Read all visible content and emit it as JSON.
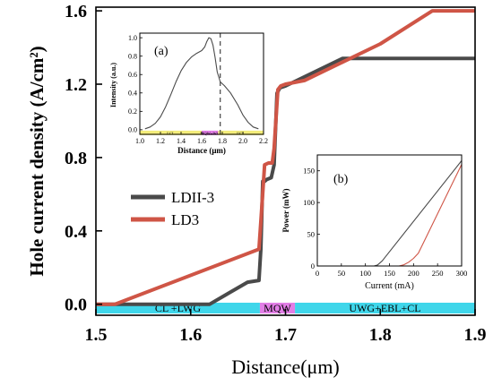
{
  "colors": {
    "ldii3": "#4a4a4a",
    "ld3": "#cf5546",
    "region_bar": "#3fd6ea",
    "mqw_bar": "#e27ee6",
    "inset_band": "#f3ec7a",
    "inset_mqw": "#e27ee6",
    "dashed": "#444444"
  },
  "chart_data": [
    {
      "type": "line",
      "ylabel": "Hole current density (A/cm²)",
      "xlabel": "Distance(μm)",
      "xlim": [
        1.5,
        1.9
      ],
      "ylim": [
        -0.06,
        1.62
      ],
      "xticks": [
        "1.5",
        "1.6",
        "1.7",
        "1.8",
        "1.9"
      ],
      "xtick_values": [
        1.5,
        1.6,
        1.7,
        1.8,
        1.9
      ],
      "yticks": [
        "0.0",
        "0.4",
        "0.8",
        "1.2",
        "1.6"
      ],
      "ytick_values": [
        0.0,
        0.4,
        0.8,
        1.2,
        1.6
      ],
      "legend_position": "left",
      "regions": [
        {
          "label": "CL +LWG",
          "x_start": 1.5,
          "x_end": 1.673,
          "kind": "main"
        },
        {
          "label": "MQW",
          "x_start": 1.673,
          "x_end": 1.71,
          "kind": "mqw"
        },
        {
          "label": "UWG+EBL+CL",
          "x_start": 1.71,
          "x_end": 1.9,
          "kind": "main"
        }
      ],
      "series": [
        {
          "name": "LDII-3",
          "color_key": "ldii3",
          "x": [
            1.5,
            1.52,
            1.62,
            1.64,
            1.66,
            1.672,
            1.674,
            1.676,
            1.678,
            1.68,
            1.685,
            1.688,
            1.691,
            1.694,
            1.7,
            1.76,
            1.9
          ],
          "y": [
            0.0,
            0.0,
            0.0,
            0.06,
            0.12,
            0.13,
            0.3,
            0.67,
            0.67,
            0.68,
            0.69,
            0.76,
            1.15,
            1.18,
            1.19,
            1.34,
            1.34
          ]
        },
        {
          "name": "LD3",
          "color_key": "ld3",
          "x": [
            1.5,
            1.52,
            1.672,
            1.674,
            1.678,
            1.682,
            1.686,
            1.688,
            1.692,
            1.695,
            1.7,
            1.72,
            1.76,
            1.8,
            1.855,
            1.9
          ],
          "y": [
            0.0,
            0.0,
            0.3,
            0.45,
            0.76,
            0.77,
            0.77,
            0.85,
            1.17,
            1.19,
            1.2,
            1.22,
            1.32,
            1.42,
            1.6,
            1.6
          ]
        }
      ]
    },
    {
      "type": "line",
      "panel_label": "(a)",
      "xlabel": "Distance (μm)",
      "ylabel": "Intensity (a.u.)",
      "xlim": [
        1.0,
        2.2
      ],
      "ylim": [
        -0.05,
        1.05
      ],
      "xticks": [
        "1.0",
        "1.2",
        "1.4",
        "1.6",
        "1.8",
        "2.0",
        "2.2"
      ],
      "xtick_values": [
        1.0,
        1.2,
        1.4,
        1.6,
        1.8,
        2.0,
        2.2
      ],
      "yticks": [
        "0.0",
        "0.2",
        "0.4",
        "0.6",
        "0.8",
        "1.0"
      ],
      "ytick_values": [
        0.0,
        0.2,
        0.4,
        0.6,
        0.8,
        1.0
      ],
      "dashed_x": 1.78,
      "bands": [
        {
          "label": "LCL",
          "x_start": 1.0,
          "x_end": 1.6,
          "kind": "band"
        },
        {
          "label": "MQW+WG",
          "x_start": 1.6,
          "x_end": 1.76,
          "kind": "mqw"
        },
        {
          "label": "UCL",
          "x_start": 1.76,
          "x_end": 2.2,
          "kind": "band"
        }
      ],
      "series": [
        {
          "name": "",
          "color_key": "ldii3",
          "x": [
            1.05,
            1.1,
            1.15,
            1.2,
            1.25,
            1.3,
            1.35,
            1.4,
            1.45,
            1.5,
            1.55,
            1.6,
            1.63,
            1.65,
            1.67,
            1.69,
            1.71,
            1.73,
            1.75,
            1.78,
            1.82,
            1.88,
            1.95,
            2.0,
            2.05,
            2.1,
            2.15
          ],
          "y": [
            0.01,
            0.03,
            0.07,
            0.14,
            0.25,
            0.38,
            0.52,
            0.64,
            0.73,
            0.79,
            0.83,
            0.86,
            0.9,
            0.96,
            1.0,
            0.99,
            0.92,
            0.79,
            0.63,
            0.52,
            0.48,
            0.4,
            0.27,
            0.16,
            0.08,
            0.03,
            0.01
          ]
        }
      ]
    },
    {
      "type": "line",
      "panel_label": "(b)",
      "xlabel": "Current (mA)",
      "ylabel": "Power (mW)",
      "xlim": [
        0,
        300
      ],
      "ylim": [
        0,
        175
      ],
      "xticks": [
        "0",
        "50",
        "100",
        "150",
        "200",
        "250",
        "300"
      ],
      "xtick_values": [
        0,
        50,
        100,
        150,
        200,
        250,
        300
      ],
      "yticks": [
        "0",
        "50",
        "100",
        "150"
      ],
      "ytick_values": [
        0,
        50,
        100,
        150
      ],
      "series": [
        {
          "name": "",
          "color_key": "ldii3",
          "x": [
            0,
            118,
            125,
            135,
            300
          ],
          "y": [
            0,
            0,
            1.5,
            8,
            166
          ]
        },
        {
          "name": "",
          "color_key": "ld3",
          "x": [
            0,
            170,
            180,
            190,
            200,
            210,
            300
          ],
          "y": [
            0,
            0,
            2,
            6,
            12,
            20,
            160
          ]
        }
      ]
    }
  ]
}
